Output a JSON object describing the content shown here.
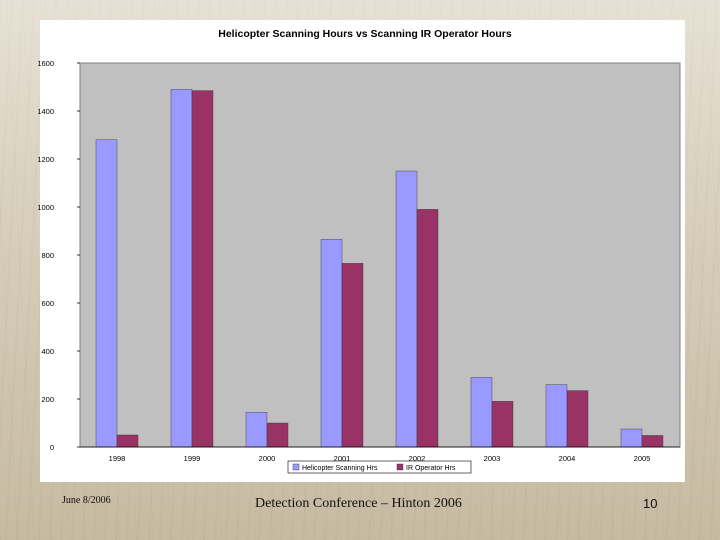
{
  "colors": {
    "plot_background": "#c0c0c0",
    "series_1": "#9999ff",
    "series_2": "#993366"
  },
  "chart_data": {
    "type": "bar",
    "title": "Helicopter Scanning Hours vs Scanning IR Operator Hours",
    "xlabel": "",
    "ylabel": "",
    "categories": [
      "1998",
      "1999",
      "2000",
      "2001",
      "2002",
      "2003",
      "2004",
      "2005"
    ],
    "series": [
      {
        "name": "Helicopter Scanning Hrs",
        "values": [
          1280,
          1490,
          145,
          865,
          1150,
          290,
          260,
          75
        ]
      },
      {
        "name": "IR Operator Hrs",
        "values": [
          50,
          1485,
          100,
          765,
          990,
          190,
          235,
          48
        ]
      }
    ],
    "yticks": [
      "0",
      "200",
      "400",
      "600",
      "800",
      "1000",
      "1200",
      "1400",
      "1600"
    ],
    "ylim": [
      0,
      1600
    ],
    "grid": false,
    "legend_position": "bottom"
  },
  "footer": {
    "date": "June 8/2006",
    "title": "Detection Conference – Hinton 2006",
    "page": "10"
  }
}
